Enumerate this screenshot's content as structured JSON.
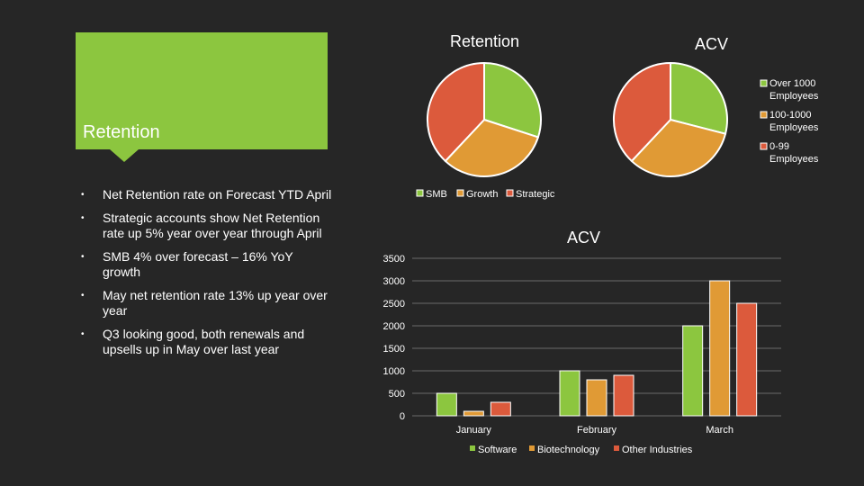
{
  "slide": {
    "banner_title": "Retention",
    "bullets": [
      "Net Retention rate on Forecast YTD April",
      "Strategic accounts show Net Retention rate up 5% year over year through April",
      "SMB 4% over forecast – 16% YoY growth",
      "May net retention rate 13% up year over year",
      "Q3 looking good, both renewals and upsells up in May over last year"
    ]
  },
  "colors": {
    "green": "#8cc63f",
    "orange": "#e09a35",
    "red": "#dc5a3c",
    "background": "#262626"
  },
  "chart_data": [
    {
      "type": "pie",
      "title": "Retention",
      "labels": [
        "SMB",
        "Growth",
        "Strategic"
      ],
      "values": [
        30,
        32,
        38
      ],
      "legend": [
        "SMB",
        "Growth",
        "Strategic"
      ],
      "legend_position": "bottom"
    },
    {
      "type": "pie",
      "title": "ACV",
      "labels": [
        "Over 1000 Employees",
        "100-1000 Employees",
        "0-99 Employees"
      ],
      "values": [
        29,
        33,
        38
      ],
      "legend": [
        "Over 1000 Employees",
        "100-1000 Employees",
        "0-99 Employees"
      ],
      "legend_position": "right"
    },
    {
      "type": "bar",
      "title": "ACV",
      "categories": [
        "January",
        "February",
        "March"
      ],
      "series": [
        {
          "name": "Software",
          "values": [
            500,
            1000,
            2000
          ]
        },
        {
          "name": "Biotechnology",
          "values": [
            100,
            800,
            3000
          ]
        },
        {
          "name": "Other Industries",
          "values": [
            300,
            900,
            2500
          ]
        }
      ],
      "ylim": [
        0,
        3500
      ],
      "yticks": [
        "0",
        "500",
        "1000",
        "1500",
        "2000",
        "2500",
        "3000",
        "3500"
      ],
      "grid": true,
      "legend_position": "bottom"
    }
  ]
}
